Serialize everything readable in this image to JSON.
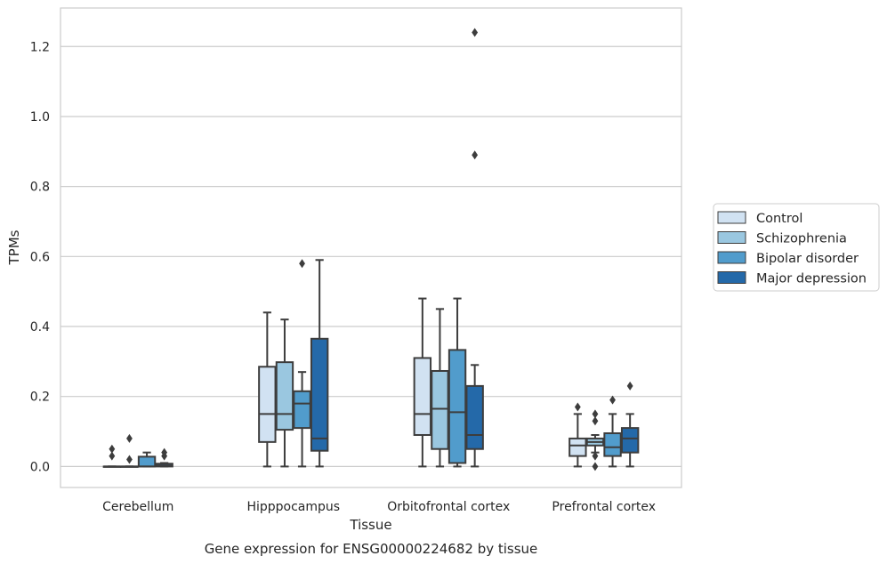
{
  "chart_data": {
    "type": "boxplot",
    "title": "",
    "caption": "Gene expression for ENSG00000224682 by tissue",
    "xlabel": "Tissue",
    "ylabel": "TPMs",
    "ylim": [
      -0.06,
      1.31
    ],
    "yticks": [
      0.0,
      0.2,
      0.4,
      0.6,
      0.8,
      1.0,
      1.2
    ],
    "ytick_labels": [
      "0.0",
      "0.2",
      "0.4",
      "0.6",
      "0.8",
      "1.0",
      "1.2"
    ],
    "grid": "horizontal",
    "legend_position": "right",
    "categories": [
      "Cerebellum",
      "Hipppocampus",
      "Orbitofrontal cortex",
      "Prefrontal cortex"
    ],
    "series": [
      {
        "name": "Control",
        "color": "#d1e2f2",
        "boxes": [
          {
            "whislo": 0.0,
            "q1": 0.0,
            "med": 0.0,
            "q3": 0.0,
            "whishi": 0.0,
            "fliers": [
              0.03,
              0.05
            ]
          },
          {
            "whislo": 0.0,
            "q1": 0.07,
            "med": 0.15,
            "q3": 0.285,
            "whishi": 0.44,
            "fliers": []
          },
          {
            "whislo": 0.0,
            "q1": 0.09,
            "med": 0.15,
            "q3": 0.31,
            "whishi": 0.48,
            "fliers": []
          },
          {
            "whislo": 0.0,
            "q1": 0.03,
            "med": 0.06,
            "q3": 0.08,
            "whishi": 0.15,
            "fliers": [
              0.17
            ]
          }
        ]
      },
      {
        "name": "Schizophrenia",
        "color": "#9ac7e0",
        "boxes": [
          {
            "whislo": 0.0,
            "q1": 0.0,
            "med": 0.0,
            "q3": 0.0,
            "whishi": 0.0,
            "fliers": [
              0.02,
              0.08
            ]
          },
          {
            "whislo": 0.0,
            "q1": 0.105,
            "med": 0.15,
            "q3": 0.298,
            "whishi": 0.42,
            "fliers": []
          },
          {
            "whislo": 0.0,
            "q1": 0.05,
            "med": 0.165,
            "q3": 0.273,
            "whishi": 0.45,
            "fliers": []
          },
          {
            "whislo": 0.04,
            "q1": 0.06,
            "med": 0.07,
            "q3": 0.08,
            "whishi": 0.09,
            "fliers": [
              0.0,
              0.03,
              0.13,
              0.15
            ]
          }
        ]
      },
      {
        "name": "Bipolar disorder",
        "color": "#519ccc",
        "boxes": [
          {
            "whislo": 0.0,
            "q1": 0.0,
            "med": 0.0,
            "q3": 0.028,
            "whishi": 0.04,
            "fliers": []
          },
          {
            "whislo": 0.0,
            "q1": 0.11,
            "med": 0.18,
            "q3": 0.215,
            "whishi": 0.27,
            "fliers": [
              0.58
            ]
          },
          {
            "whislo": 0.0,
            "q1": 0.01,
            "med": 0.155,
            "q3": 0.333,
            "whishi": 0.48,
            "fliers": []
          },
          {
            "whislo": 0.0,
            "q1": 0.03,
            "med": 0.055,
            "q3": 0.095,
            "whishi": 0.15,
            "fliers": [
              0.19
            ]
          }
        ]
      },
      {
        "name": "Major depression",
        "color": "#2469a9",
        "boxes": [
          {
            "whislo": 0.0,
            "q1": 0.0,
            "med": 0.003,
            "q3": 0.008,
            "whishi": 0.01,
            "fliers": [
              0.03,
              0.04
            ]
          },
          {
            "whislo": 0.0,
            "q1": 0.045,
            "med": 0.08,
            "q3": 0.365,
            "whishi": 0.59,
            "fliers": []
          },
          {
            "whislo": 0.0,
            "q1": 0.05,
            "med": 0.09,
            "q3": 0.23,
            "whishi": 0.29,
            "fliers": [
              0.89,
              1.24
            ]
          },
          {
            "whislo": 0.0,
            "q1": 0.04,
            "med": 0.08,
            "q3": 0.11,
            "whishi": 0.15,
            "fliers": [
              0.23
            ]
          }
        ]
      }
    ]
  }
}
